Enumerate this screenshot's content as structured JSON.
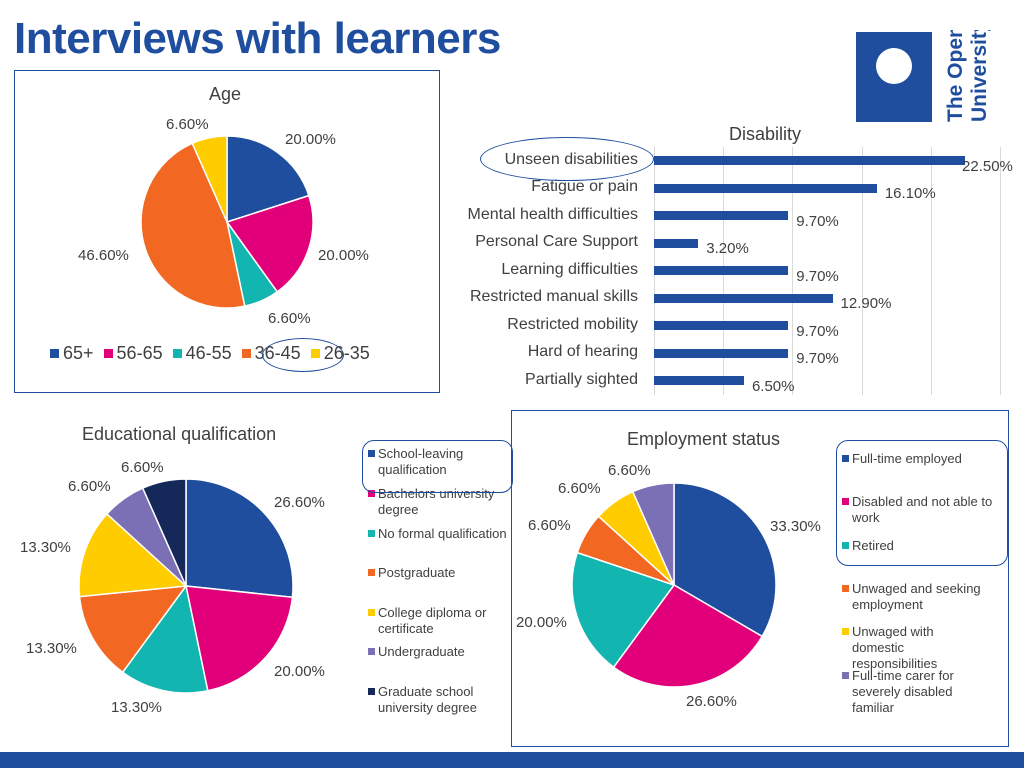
{
  "page": {
    "title": "Interviews with learners"
  },
  "logo": {
    "line1": "The Open",
    "line2": "University"
  },
  "colors": {
    "brand": "#1f4e9e"
  },
  "chart_data": [
    {
      "id": "age",
      "type": "pie",
      "title": "Age",
      "categories": [
        "65+",
        "56-65",
        "46-55",
        "36-45",
        "26-35"
      ],
      "values": [
        20.0,
        20.0,
        6.6,
        46.6,
        6.6
      ],
      "labels": [
        "20.00%",
        "20.00%",
        "6.60%",
        "46.60%",
        "6.60%"
      ],
      "colors": [
        "#1f4e9e",
        "#e2007a",
        "#12b5b0",
        "#f26722",
        "#ffcc00"
      ],
      "legend_position": "bottom",
      "highlighted": "36-45"
    },
    {
      "id": "disability",
      "type": "bar",
      "orientation": "horizontal",
      "title": "Disability",
      "categories": [
        "Unseen disabilities",
        "Fatigue or pain",
        "Mental health difficulties",
        "Personal Care Support",
        "Learning difficulties",
        "Restricted manual skills",
        "Restricted mobility",
        "Hard of hearing",
        "Partially sighted"
      ],
      "values": [
        22.5,
        16.1,
        9.7,
        3.2,
        9.7,
        12.9,
        9.7,
        9.7,
        6.5
      ],
      "labels": [
        "22.50%",
        "16.10%",
        "9.70%",
        "3.20%",
        "9.70%",
        "12.90%",
        "9.70%",
        "9.70%",
        "6.50%"
      ],
      "xlim": [
        0,
        25
      ],
      "highlighted": "Unseen disabilities"
    },
    {
      "id": "education",
      "type": "pie",
      "title": "Educational qualification",
      "categories": [
        "School-leaving qualification",
        "Bachelors university degree",
        "No formal qualification",
        "Postgraduate",
        "College diploma or certificate",
        "Undergraduate",
        "Graduate school university degree"
      ],
      "values": [
        26.6,
        20.0,
        13.3,
        13.3,
        13.3,
        6.6,
        6.6
      ],
      "labels": [
        "26.60%",
        "20.00%",
        "13.30%",
        "13.30%",
        "13.30%",
        "6.60%",
        "6.60%"
      ],
      "colors": [
        "#1f4e9e",
        "#e2007a",
        "#12b5b0",
        "#f26722",
        "#ffcc00",
        "#7b6fb5",
        "#14295a"
      ],
      "legend_position": "right",
      "highlighted": "School-leaving qualification"
    },
    {
      "id": "employment",
      "type": "pie",
      "title": "Employment status",
      "categories": [
        "Full-time employed",
        "Disabled and not able to  work",
        "Retired",
        "Unwaged and seeking employment",
        "Unwaged with domestic responsibilities",
        "Full-time carer for severely disabled familiar"
      ],
      "values": [
        33.3,
        26.6,
        20.0,
        6.6,
        6.6,
        6.6
      ],
      "labels": [
        "33.30%",
        "26.60%",
        "20.00%",
        "6.60%",
        "6.60%",
        "6.60%"
      ],
      "colors": [
        "#1f4e9e",
        "#e2007a",
        "#12b5b0",
        "#f26722",
        "#ffcc00",
        "#7b6fb5"
      ],
      "legend_position": "right",
      "highlighted": "Full-time employed, Disabled and not able to work, Retired"
    }
  ]
}
